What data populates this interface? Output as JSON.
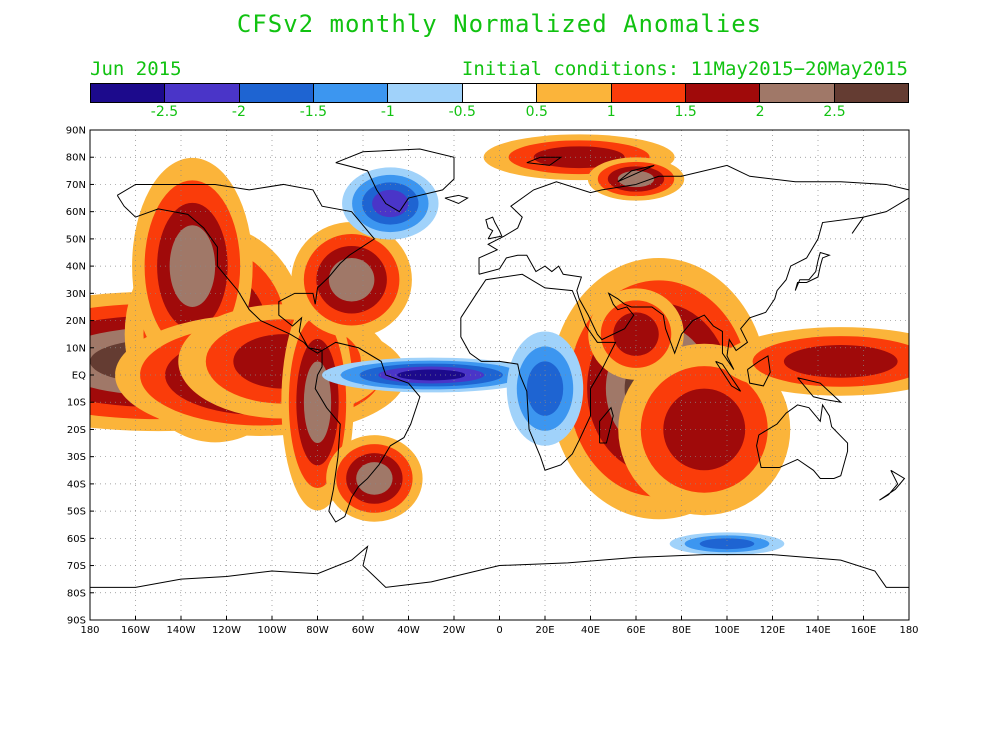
{
  "title": "CFSv2 monthly Normalized Anomalies",
  "month_label": "Jun 2015",
  "initial_conditions": "Initial conditions: 11May2015−20May2015",
  "colorbar": {
    "colors": [
      "#1c0a8c",
      "#4a35c8",
      "#1e64d2",
      "#3c96f0",
      "#a0d2fa",
      "#ffffff",
      "#fbb43a",
      "#fa3c0a",
      "#a00a0a",
      "#a07868",
      "#643c32"
    ],
    "labels": [
      "-2.5",
      "-2",
      "-1.5",
      "-1",
      "-0.5",
      "0.5",
      "1",
      "1.5",
      "2",
      "2.5"
    ]
  },
  "axes": {
    "lat_labels": [
      "90N",
      "80N",
      "70N",
      "60N",
      "50N",
      "40N",
      "30N",
      "20N",
      "10N",
      "EQ",
      "10S",
      "20S",
      "30S",
      "40S",
      "50S",
      "60S",
      "70S",
      "80S",
      "90S"
    ],
    "lon_labels": [
      "180",
      "160W",
      "140W",
      "120W",
      "100W",
      "80W",
      "60W",
      "40W",
      "20W",
      "0",
      "20E",
      "40E",
      "60E",
      "80E",
      "100E",
      "120E",
      "140E",
      "160E",
      "180"
    ],
    "lon_range": [
      -180,
      180
    ],
    "lat_range": [
      -90,
      90
    ],
    "grid": "dotted"
  },
  "map_data": {
    "region": "global",
    "variable": "normalized anomaly",
    "anomaly_fields": [
      {
        "lon": -150,
        "lat": 5,
        "rx": 30,
        "ry": 8,
        "level": 10
      },
      {
        "lon": -125,
        "lat": 15,
        "rx": 15,
        "ry": 15,
        "level": 9
      },
      {
        "lon": -135,
        "lat": 40,
        "rx": 10,
        "ry": 15,
        "level": 9
      },
      {
        "lon": -105,
        "lat": 0,
        "rx": 20,
        "ry": 7,
        "level": 10
      },
      {
        "lon": -95,
        "lat": 5,
        "rx": 22,
        "ry": 10,
        "level": 8
      },
      {
        "lon": -80,
        "lat": -10,
        "rx": 6,
        "ry": 15,
        "level": 9
      },
      {
        "lon": -65,
        "lat": 35,
        "rx": 10,
        "ry": 8,
        "level": 9
      },
      {
        "lon": -55,
        "lat": -38,
        "rx": 8,
        "ry": 6,
        "level": 9
      },
      {
        "lon": 70,
        "lat": -5,
        "rx": 15,
        "ry": 15,
        "level": 10
      },
      {
        "lon": 90,
        "lat": -20,
        "rx": 18,
        "ry": 15,
        "level": 8
      },
      {
        "lon": 60,
        "lat": 15,
        "rx": 10,
        "ry": 8,
        "level": 8
      },
      {
        "lon": 150,
        "lat": 5,
        "rx": 25,
        "ry": 6,
        "level": 8
      },
      {
        "lon": 35,
        "lat": 80,
        "rx": 20,
        "ry": 4,
        "level": 8
      },
      {
        "lon": 60,
        "lat": 72,
        "rx": 8,
        "ry": 3,
        "level": 9
      },
      {
        "lon": -30,
        "lat": 0,
        "rx": 15,
        "ry": 2,
        "level": 0
      },
      {
        "lon": 20,
        "lat": -5,
        "rx": 8,
        "ry": 10,
        "level": 2
      },
      {
        "lon": -48,
        "lat": 63,
        "rx": 8,
        "ry": 5,
        "level": 1
      },
      {
        "lon": 100,
        "lat": -62,
        "rx": 12,
        "ry": 2,
        "level": 2
      }
    ]
  }
}
